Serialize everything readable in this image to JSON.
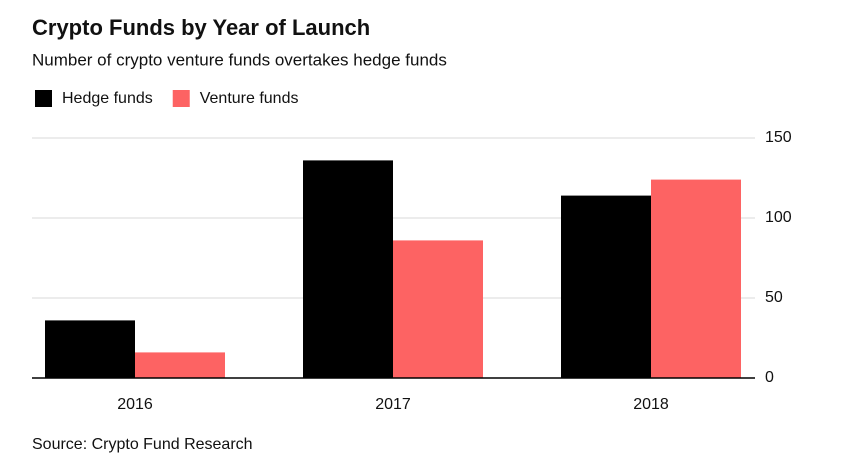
{
  "chart_data": {
    "type": "bar",
    "title": "Crypto Funds by Year of Launch",
    "subtitle": "Number of crypto venture funds overtakes hedge funds",
    "source": "Source: Crypto Fund Research",
    "categories": [
      "2016",
      "2017",
      "2018"
    ],
    "series": [
      {
        "name": "Hedge funds",
        "color": "#000000",
        "values": [
          36,
          136,
          114
        ]
      },
      {
        "name": "Venture funds",
        "color": "#fd6363",
        "values": [
          16,
          86,
          124
        ]
      }
    ],
    "ylim": [
      0,
      150
    ],
    "yticks": [
      0,
      50,
      100,
      150
    ],
    "grid": true
  }
}
